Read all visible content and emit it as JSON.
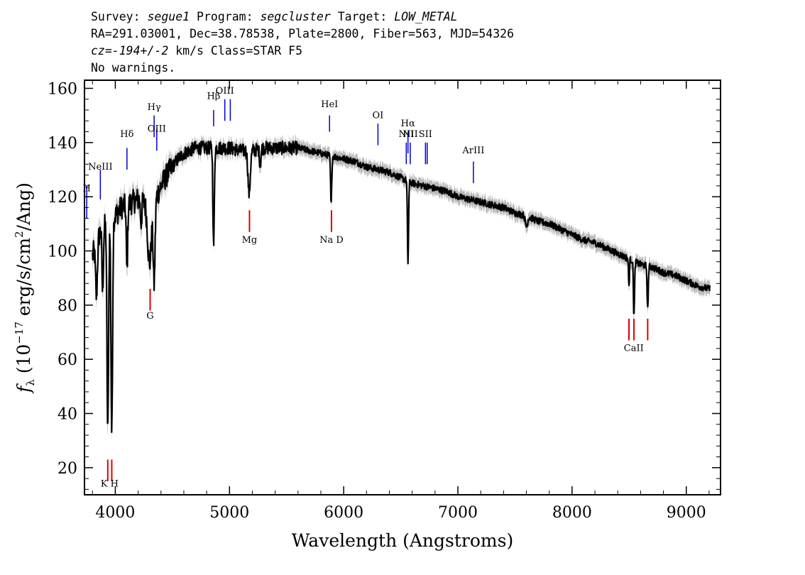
{
  "header": {
    "line1": {
      "survey_label": "Survey: ",
      "survey": "segue1",
      "program_label": " Program: ",
      "program": "segcluster",
      "target_label": " Target: ",
      "target": "LOW_METAL"
    },
    "line2": "RA=291.03001, Dec=38.78538, Plate=2800, Fiber=563, MJD=54326",
    "line3": {
      "cz": "cz=-194+/-2",
      "rest": " km/s Class=STAR F5"
    },
    "line4": "No warnings."
  },
  "chart_data": {
    "type": "line",
    "xlabel": "Wavelength (Angstroms)",
    "ylabel": "f_λ (10^-17 erg/s/cm^2/Ang)",
    "ylabel_parts": {
      "f": "f",
      "sub": "λ",
      "a": " (10",
      "exp1": "−17",
      "b": " erg/s/cm",
      "exp2": "2",
      "c": "/Ang)"
    },
    "xlim": [
      3730,
      9300
    ],
    "ylim": [
      10,
      163
    ],
    "xticks": [
      4000,
      5000,
      6000,
      7000,
      8000,
      9000
    ],
    "yticks": [
      20,
      40,
      60,
      80,
      100,
      120,
      140,
      160
    ],
    "series_color": "#000000",
    "error_band_color": "#b8b8b8",
    "emission_color": "#0000cc",
    "absorption_color": "#dd0000",
    "continuum": [
      [
        3800,
        98
      ],
      [
        3840,
        104
      ],
      [
        3880,
        108
      ],
      [
        3920,
        110
      ],
      [
        3960,
        113
      ],
      [
        4000,
        113
      ],
      [
        4050,
        116
      ],
      [
        4100,
        117
      ],
      [
        4150,
        118
      ],
      [
        4200,
        119
      ],
      [
        4250,
        118
      ],
      [
        4300,
        117
      ],
      [
        4350,
        119
      ],
      [
        4400,
        124
      ],
      [
        4450,
        128
      ],
      [
        4500,
        131
      ],
      [
        4550,
        134
      ],
      [
        4600,
        136
      ],
      [
        4650,
        137
      ],
      [
        4700,
        138
      ],
      [
        4750,
        138
      ],
      [
        4800,
        138
      ],
      [
        4900,
        138
      ],
      [
        5000,
        138
      ],
      [
        5100,
        137
      ],
      [
        5200,
        137
      ],
      [
        5300,
        138
      ],
      [
        5400,
        138
      ],
      [
        5500,
        138
      ],
      [
        5600,
        138
      ],
      [
        5700,
        137
      ],
      [
        5800,
        136
      ],
      [
        5900,
        135
      ],
      [
        6000,
        134
      ],
      [
        6100,
        133
      ],
      [
        6200,
        131
      ],
      [
        6300,
        130
      ],
      [
        6400,
        129
      ],
      [
        6500,
        127
      ],
      [
        6600,
        125
      ],
      [
        6700,
        124
      ],
      [
        6800,
        123
      ],
      [
        6900,
        122
      ],
      [
        7000,
        120
      ],
      [
        7100,
        119
      ],
      [
        7200,
        118
      ],
      [
        7300,
        117
      ],
      [
        7400,
        116
      ],
      [
        7500,
        114
      ],
      [
        7600,
        113
      ],
      [
        7700,
        111
      ],
      [
        7800,
        110
      ],
      [
        7900,
        108
      ],
      [
        8000,
        106
      ],
      [
        8100,
        104
      ],
      [
        8200,
        103
      ],
      [
        8300,
        101
      ],
      [
        8400,
        99
      ],
      [
        8500,
        97
      ],
      [
        8600,
        95
      ],
      [
        8700,
        94
      ],
      [
        8800,
        92
      ],
      [
        8900,
        91
      ],
      [
        9000,
        89
      ],
      [
        9100,
        87
      ],
      [
        9200,
        86
      ]
    ],
    "absorption_features": [
      [
        3835,
        20,
        8
      ],
      [
        3889,
        24,
        6
      ],
      [
        3934,
        78,
        7
      ],
      [
        3969,
        80,
        7
      ],
      [
        4102,
        24,
        6
      ],
      [
        4226,
        8,
        6
      ],
      [
        4300,
        22,
        16
      ],
      [
        4340,
        30,
        8
      ],
      [
        4861,
        36,
        6
      ],
      [
        5172,
        16,
        10
      ],
      [
        5269,
        6,
        6
      ],
      [
        5890,
        18,
        5
      ],
      [
        6563,
        30,
        5
      ],
      [
        7600,
        4,
        10
      ],
      [
        8498,
        10,
        4
      ],
      [
        8542,
        20,
        5
      ],
      [
        8662,
        16,
        5
      ]
    ],
    "emission_lines": [
      {
        "name": "H",
        "wl": 3750,
        "y1": 124,
        "y2": 112,
        "label_y": 122
      },
      {
        "name": "NeIII",
        "wl": 3869,
        "y1": 130,
        "y2": 119,
        "label_y": 130
      },
      {
        "name": "Hδ",
        "wl": 4102,
        "y1": 138,
        "y2": 130,
        "label_y": 142
      },
      {
        "name": "Hγ",
        "wl": 4340,
        "y1": 150,
        "y2": 142,
        "label_y": 152
      },
      {
        "name": "OIII",
        "wl": 4363,
        "y1": 145,
        "y2": 137,
        "label_y": 144
      },
      {
        "name": "Hβ",
        "wl": 4861,
        "y1": 152,
        "y2": 146,
        "label_y": 156
      },
      {
        "name": "OIII",
        "wl": 4959,
        "y1": 156,
        "y2": 148,
        "label_y": 158
      },
      {
        "name": "",
        "wl": 5007,
        "y1": 156,
        "y2": 148,
        "label_y": 0
      },
      {
        "name": "HeI",
        "wl": 5876,
        "y1": 150,
        "y2": 144,
        "label_y": 153
      },
      {
        "name": "OI",
        "wl": 6300,
        "y1": 147,
        "y2": 139,
        "label_y": 149
      },
      {
        "name": "NII",
        "wl": 6548,
        "y1": 140,
        "y2": 132,
        "label_y": 142
      },
      {
        "name": "Hα",
        "wl": 6563,
        "y1": 144,
        "y2": 136,
        "label_y": 146
      },
      {
        "name": "NII",
        "wl": 6583,
        "y1": 140,
        "y2": 132,
        "label_y": 142
      },
      {
        "name": "SII",
        "wl": 6716,
        "y1": 140,
        "y2": 132,
        "label_y": 142
      },
      {
        "name": "",
        "wl": 6731,
        "y1": 140,
        "y2": 132,
        "label_y": 0
      },
      {
        "name": "ArIII",
        "wl": 7136,
        "y1": 133,
        "y2": 125,
        "label_y": 136
      }
    ],
    "absorption_lines": [
      {
        "name": "K H",
        "wl": 3950,
        "y1": 23,
        "y2": 15,
        "label_y": 13,
        "ticks": [
          3934,
          3969
        ]
      },
      {
        "name": "G",
        "wl": 4305,
        "y1": 86,
        "y2": 78,
        "label_y": 75,
        "ticks": [
          4305
        ]
      },
      {
        "name": "Mg",
        "wl": 5175,
        "y1": 115,
        "y2": 107,
        "label_y": 103,
        "ticks": [
          5175
        ]
      },
      {
        "name": "Na D",
        "wl": 5893,
        "y1": 115,
        "y2": 107,
        "label_y": 103,
        "ticks": [
          5893
        ]
      },
      {
        "name": "CaII",
        "wl": 8540,
        "y1": 75,
        "y2": 67,
        "label_y": 63,
        "ticks": [
          8498,
          8542,
          8662
        ]
      }
    ]
  }
}
